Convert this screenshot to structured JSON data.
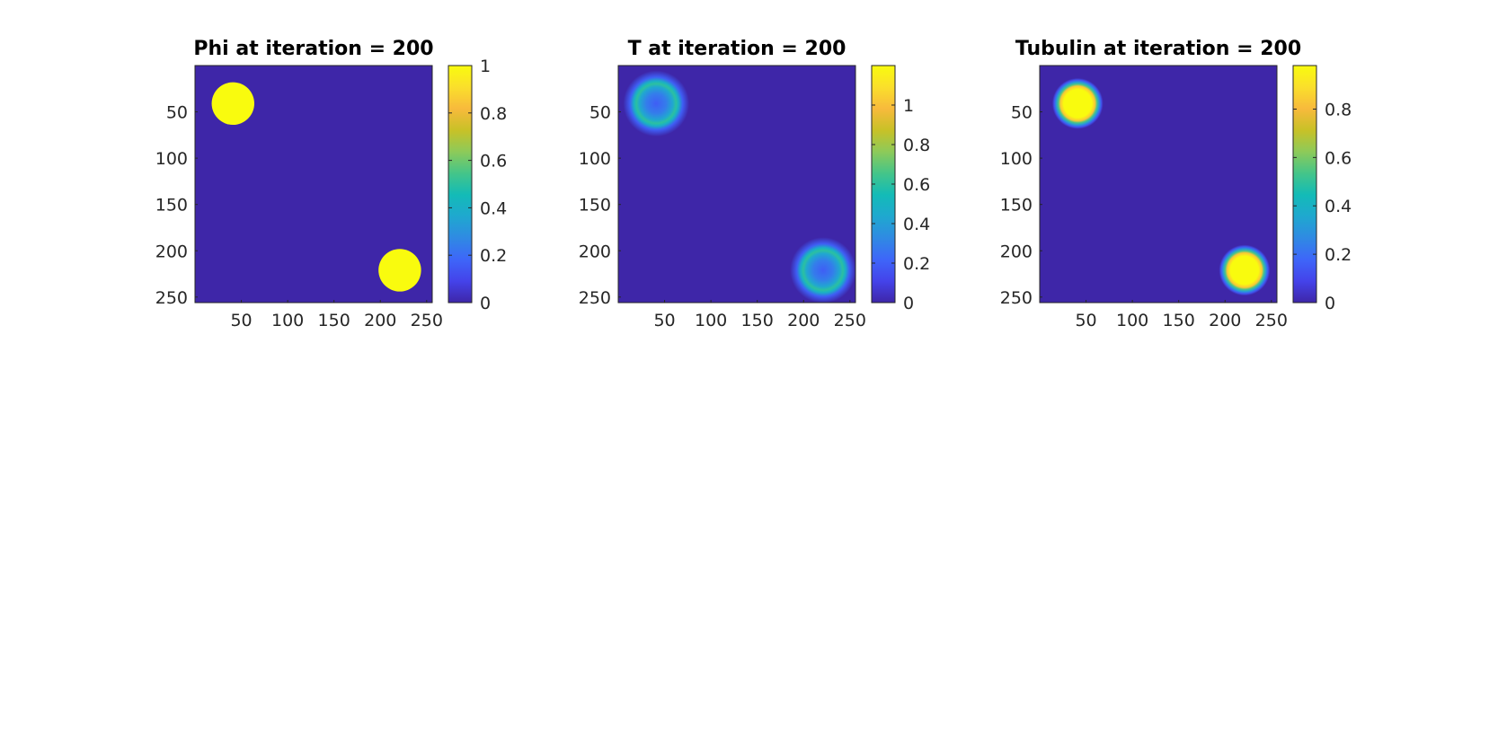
{
  "figure": {
    "background": "#ffffff"
  },
  "chart_data": [
    {
      "type": "heatmap",
      "title": "Phi at iteration = 200",
      "xlim": [
        0,
        256
      ],
      "ylim": [
        0,
        256
      ],
      "xticks": [
        "50",
        "100",
        "150",
        "200",
        "250"
      ],
      "yticks": [
        "50",
        "100",
        "150",
        "200",
        "250"
      ],
      "y_direction": "reversed",
      "colorbar": {
        "ticks": [
          "0",
          "0.2",
          "0.4",
          "0.6",
          "0.8",
          "1"
        ],
        "values": [
          0,
          0.2,
          0.4,
          0.6,
          0.8,
          1
        ],
        "range": [
          0,
          1
        ]
      },
      "features": [
        {
          "shape": "disk",
          "cx": 41,
          "cy": 41,
          "r": 23,
          "value": 1
        },
        {
          "shape": "disk",
          "cx": 221,
          "cy": 221,
          "r": 23,
          "value": 1
        }
      ],
      "background_value": 0
    },
    {
      "type": "heatmap",
      "title": "T at iteration = 200",
      "xlim": [
        0,
        256
      ],
      "ylim": [
        0,
        256
      ],
      "xticks": [
        "50",
        "100",
        "150",
        "200",
        "250"
      ],
      "yticks": [
        "50",
        "100",
        "150",
        "200",
        "250"
      ],
      "y_direction": "reversed",
      "colorbar": {
        "ticks": [
          "0",
          "0.2",
          "0.4",
          "0.6",
          "0.8",
          "1"
        ],
        "values": [
          0,
          0.2,
          0.4,
          0.6,
          0.8,
          1
        ],
        "range": [
          0,
          1.2
        ]
      },
      "features": [
        {
          "shape": "ring",
          "cx": 41,
          "cy": 41,
          "r": 23,
          "value": 0.6
        },
        {
          "shape": "ring",
          "cx": 221,
          "cy": 221,
          "r": 23,
          "value": 0.6
        }
      ],
      "background_value": 0
    },
    {
      "type": "heatmap",
      "title": "Tubulin at iteration = 200",
      "xlim": [
        0,
        256
      ],
      "ylim": [
        0,
        256
      ],
      "xticks": [
        "50",
        "100",
        "150",
        "200",
        "250"
      ],
      "yticks": [
        "50",
        "100",
        "150",
        "200",
        "250"
      ],
      "y_direction": "reversed",
      "colorbar": {
        "ticks": [
          "0",
          "0.2",
          "0.4",
          "0.6",
          "0.8"
        ],
        "values": [
          0,
          0.2,
          0.4,
          0.6,
          0.8
        ],
        "range": [
          0,
          0.98
        ]
      },
      "features": [
        {
          "shape": "blob",
          "cx": 41,
          "cy": 41,
          "r": 22,
          "value": 0.98
        },
        {
          "shape": "blob",
          "cx": 221,
          "cy": 221,
          "r": 22,
          "value": 0.98
        }
      ],
      "background_value": 0
    }
  ],
  "colormap": {
    "name": "parula",
    "stops": [
      "#3e26a8",
      "#4443ea",
      "#3e66f9",
      "#2f8ae3",
      "#1fa8cf",
      "#13bbb7",
      "#44c589",
      "#8dca59",
      "#c8c127",
      "#f8ba3c",
      "#fadf2b",
      "#f9fb0e"
    ]
  }
}
